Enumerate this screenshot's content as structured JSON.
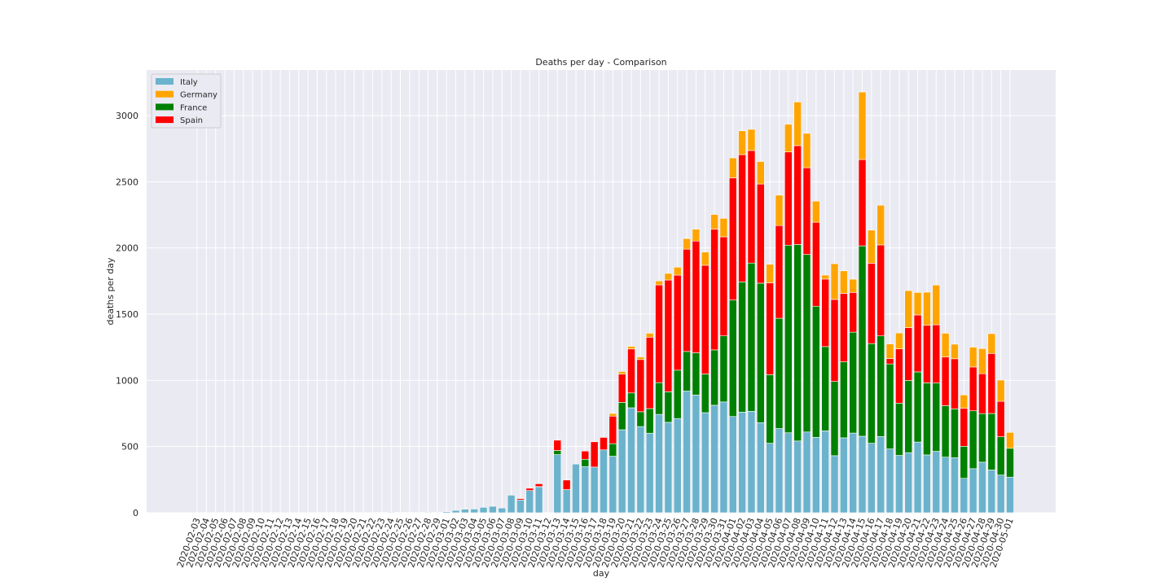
{
  "chart_data": {
    "type": "bar",
    "stacked": true,
    "title": "Deaths per day - Comparison",
    "xlabel": "day",
    "ylabel": "deaths per day",
    "ylim": [
      0,
      3300
    ],
    "yticks": [
      0,
      500,
      1000,
      1500,
      2000,
      2500,
      3000
    ],
    "grid": true,
    "legend_position": "top-left",
    "categories": [
      "2020-02-03",
      "2020-02-04",
      "2020-02-05",
      "2020-02-06",
      "2020-02-07",
      "2020-02-08",
      "2020-02-09",
      "2020-02-10",
      "2020-02-11",
      "2020-02-12",
      "2020-02-13",
      "2020-02-14",
      "2020-02-15",
      "2020-02-16",
      "2020-02-17",
      "2020-02-18",
      "2020-02-19",
      "2020-02-20",
      "2020-02-21",
      "2020-02-22",
      "2020-02-23",
      "2020-02-24",
      "2020-02-25",
      "2020-02-26",
      "2020-02-27",
      "2020-02-28",
      "2020-02-29",
      "2020-03-01",
      "2020-03-02",
      "2020-03-03",
      "2020-03-04",
      "2020-03-05",
      "2020-03-06",
      "2020-03-07",
      "2020-03-08",
      "2020-03-09",
      "2020-03-10",
      "2020-03-11",
      "2020-03-12",
      "2020-03-13",
      "2020-03-14",
      "2020-03-15",
      "2020-03-16",
      "2020-03-17",
      "2020-03-18",
      "2020-03-19",
      "2020-03-20",
      "2020-03-21",
      "2020-03-22",
      "2020-03-23",
      "2020-03-24",
      "2020-03-25",
      "2020-03-26",
      "2020-03-27",
      "2020-03-28",
      "2020-03-29",
      "2020-03-30",
      "2020-03-31",
      "2020-04-01",
      "2020-04-02",
      "2020-04-03",
      "2020-04-04",
      "2020-04-05",
      "2020-04-06",
      "2020-04-07",
      "2020-04-08",
      "2020-04-09",
      "2020-04-10",
      "2020-04-11",
      "2020-04-12",
      "2020-04-13",
      "2020-04-14",
      "2020-04-15",
      "2020-04-16",
      "2020-04-17",
      "2020-04-18",
      "2020-04-19",
      "2020-04-20",
      "2020-04-21",
      "2020-04-22",
      "2020-04-23",
      "2020-04-24",
      "2020-04-25",
      "2020-04-26",
      "2020-04-27",
      "2020-04-28",
      "2020-04-29",
      "2020-04-30",
      "2020-05-01"
    ],
    "series": [
      {
        "name": "Italy",
        "color": "#6bb3cc",
        "values": [
          0,
          0,
          0,
          0,
          0,
          0,
          0,
          0,
          0,
          0,
          0,
          0,
          0,
          0,
          0,
          0,
          0,
          0,
          0,
          1,
          2,
          5,
          4,
          3,
          2,
          5,
          4,
          8,
          18,
          27,
          28,
          41,
          49,
          36,
          133,
          97,
          168,
          196,
          0,
          439,
          175,
          368,
          349,
          345,
          475,
          427,
          627,
          793,
          651,
          601,
          743,
          683,
          712,
          919,
          889,
          756,
          812,
          837,
          727,
          760,
          766,
          681,
          525,
          636,
          604,
          542,
          610,
          570,
          619,
          431,
          566,
          602,
          578,
          525,
          575,
          482,
          433,
          454,
          534,
          437,
          464,
          420,
          415,
          260,
          333,
          382,
          323,
          285,
          269
        ]
      },
      {
        "name": "France",
        "color": "#008000",
        "values": [
          0,
          0,
          0,
          0,
          0,
          0,
          0,
          0,
          0,
          0,
          0,
          0,
          0,
          0,
          0,
          0,
          0,
          0,
          0,
          0,
          0,
          0,
          0,
          0,
          0,
          0,
          0,
          0,
          0,
          0,
          0,
          0,
          0,
          0,
          0,
          0,
          0,
          2,
          0,
          31,
          0,
          0,
          55,
          0,
          0,
          95,
          207,
          112,
          112,
          186,
          240,
          231,
          365,
          299,
          319,
          292,
          418,
          499,
          880,
          984,
          1120,
          1053,
          518,
          833,
          1417,
          1484,
          1341,
          990,
          636,
          561,
          574,
          762,
          1438,
          753,
          761,
          642,
          395,
          545,
          530,
          544,
          516,
          389,
          370,
          242,
          437,
          367,
          427,
          289,
          218
        ]
      },
      {
        "name": "Spain",
        "color": "#ff0000",
        "values": [
          0,
          0,
          0,
          0,
          0,
          0,
          0,
          0,
          0,
          0,
          0,
          0,
          0,
          0,
          0,
          0,
          0,
          0,
          0,
          0,
          0,
          0,
          0,
          0,
          0,
          0,
          0,
          0,
          0,
          0,
          0,
          0,
          0,
          0,
          0,
          10,
          17,
          21,
          0,
          78,
          72,
          0,
          62,
          191,
          94,
          208,
          213,
          332,
          394,
          539,
          738,
          844,
          718,
          773,
          844,
          821,
          913,
          748,
          923,
          961,
          850,
          749,
          694,
          700,
          704,
          747,
          655,
          634,
          510,
          619,
          517,
          300,
          652,
          607,
          687,
          41,
          410,
          399,
          430,
          435,
          440,
          367,
          378,
          288,
          331,
          301,
          453,
          268,
          0
        ]
      },
      {
        "name": "Germany",
        "color": "#ffa500",
        "values": [
          0,
          0,
          0,
          0,
          0,
          0,
          0,
          0,
          0,
          0,
          0,
          0,
          0,
          0,
          0,
          0,
          0,
          0,
          0,
          0,
          0,
          0,
          0,
          0,
          0,
          0,
          0,
          0,
          0,
          0,
          0,
          0,
          0,
          0,
          0,
          0,
          0,
          0,
          0,
          0,
          0,
          0,
          0,
          0,
          0,
          20,
          20,
          20,
          20,
          30,
          30,
          50,
          60,
          80,
          90,
          100,
          110,
          140,
          150,
          180,
          160,
          170,
          140,
          230,
          210,
          330,
          260,
          160,
          30,
          270,
          170,
          100,
          510,
          250,
          300,
          110,
          120,
          280,
          170,
          250,
          300,
          180,
          110,
          100,
          150,
          190,
          150,
          160,
          120
        ]
      }
    ]
  }
}
